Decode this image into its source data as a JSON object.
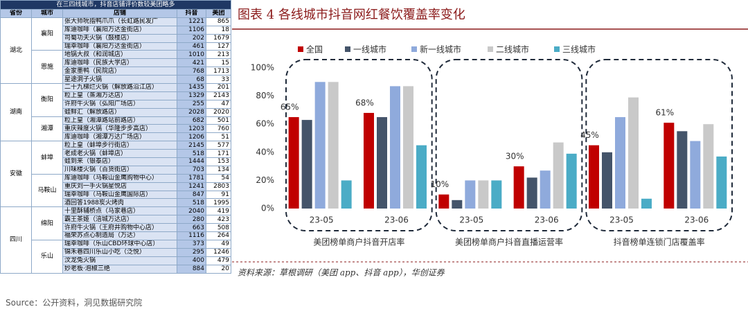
{
  "table": {
    "title": "在三四线城市，抖音店铺评价数较美团略多",
    "headers": [
      "省份",
      "城市",
      "店铺",
      "抖音",
      "美团"
    ],
    "provinces": [
      {
        "name": "湖北",
        "cities": [
          {
            "name": "襄阳",
            "stores": [
              {
                "name": "张大师吮指鸭爪爪（长虹路民发广",
                "douyin": 1221,
                "meituan": 865
              },
              {
                "name": "库迪咖啡（襄阳万达金街店）",
                "douyin": 1106,
                "meituan": 18
              },
              {
                "name": "司蜀功夫火锅（鼓楼店）",
                "douyin": 202,
                "meituan": 1679
              },
              {
                "name": "瑞幸咖啡（襄阳万达金街店）",
                "douyin": 461,
                "meituan": 127
              }
            ]
          },
          {
            "name": "恩施",
            "stores": [
              {
                "name": "地锅大叔（和润城店）",
                "douyin": 1010,
                "meituan": 213
              },
              {
                "name": "库迪咖啡（民族大学店）",
                "douyin": 421,
                "meituan": 15
              },
              {
                "name": "金家墨鸭（民院店）",
                "douyin": 768,
                "meituan": 1713
              },
              {
                "name": "星途洞子火锅",
                "douyin": 68,
                "meituan": 33
              }
            ]
          }
        ]
      },
      {
        "name": "湖南",
        "cities": [
          {
            "name": "衡阳",
            "stores": [
              {
                "name": "二十九梯烂火锅（解放路沿江店）",
                "douyin": 1435,
                "meituan": 201
              },
              {
                "name": "粒上皇（蒸湘万达店）",
                "douyin": 1329,
                "meituan": 2143
              },
              {
                "name": "许府牛火锅（弘阳广场店）",
                "douyin": 255,
                "meituan": 47
              },
              {
                "name": "蛙鲜汇（解放路店）",
                "douyin": 2028,
                "meituan": 2020
              }
            ]
          },
          {
            "name": "湘潭",
            "stores": [
              {
                "name": "粒上皇（湘潭路站前路店）",
                "douyin": 682,
                "meituan": 501
              },
              {
                "name": "重庆辣度火锅（华隆步步高店）",
                "douyin": 1203,
                "meituan": 760
              },
              {
                "name": "库迪咖啡（湘潭万达广场店）",
                "douyin": 1206,
                "meituan": 51
              }
            ]
          }
        ]
      },
      {
        "name": "安徽",
        "cities": [
          {
            "name": "蚌埠",
            "stores": [
              {
                "name": "粒上皇（蚌埠步行街店）",
                "douyin": 2145,
                "meituan": 577
              },
              {
                "name": "老成老火锅（蚌埠店）",
                "douyin": 518,
                "meituan": 171
              },
              {
                "name": "蛙到来（银泰店）",
                "douyin": 1444,
                "meituan": 153
              },
              {
                "name": "川味楼火锅（百货街店）",
                "douyin": 703,
                "meituan": 134
              }
            ]
          },
          {
            "name": "马鞍山",
            "stores": [
              {
                "name": "库迪咖啡（马鞍山金鹰购物中心）",
                "douyin": 1781,
                "meituan": 54
              },
              {
                "name": "重庆刘一手火锅星悦店",
                "douyin": 1241,
                "meituan": 2803
              },
              {
                "name": "瑞幸咖啡（马鞍山金鹰国际店）",
                "douyin": 847,
                "meituan": 91
              },
              {
                "name": "酒回答1988炭火烤肉",
                "douyin": 518,
                "meituan": 1995
              }
            ]
          }
        ]
      },
      {
        "name": "四川",
        "cities": [
          {
            "name": "绵阳",
            "stores": [
              {
                "name": "十里酥辅桥点（马家巷店）",
                "douyin": 2040,
                "meituan": 419
              },
              {
                "name": "霸王茶姬（涪城万达店）",
                "douyin": 280,
                "meituan": 423
              },
              {
                "name": "许府牛火锅（王府井购物中心店）",
                "douyin": 663,
                "meituan": 508
              },
              {
                "name": "福荣苏点心制造局（万达）",
                "douyin": 1116,
                "meituan": 264
              }
            ]
          },
          {
            "name": "乐山",
            "stores": [
              {
                "name": "瑞幸咖啡（乐山CBD环球中心店）",
                "douyin": 373,
                "meituan": 49
              },
              {
                "name": "锦禾巷四川乐山小吃（泛悦）",
                "douyin": 295,
                "meituan": 1246
              },
              {
                "name": "汶龙兔火锅",
                "douyin": 400,
                "meituan": 479
              },
              {
                "name": "妙老板·泡椒三绝",
                "douyin": 884,
                "meituan": 20
              }
            ]
          }
        ]
      }
    ]
  },
  "chart_data": {
    "type": "bar",
    "title": "图表 4   各线城市抖音网红餐饮覆盖率变化",
    "categories": [
      "23-05",
      "23-06",
      "23-05",
      "23-06",
      "23-05",
      "23-06"
    ],
    "groups": [
      "美团榜单商户抖音开店率",
      "美团榜单商户抖音直播运营率",
      "抖音榜单连锁门店覆盖率"
    ],
    "series": [
      {
        "name": "全国",
        "color": "#c00000",
        "values": [
          65,
          68,
          10,
          30,
          45,
          61
        ],
        "value_labels": [
          "65%",
          "68%",
          "10%",
          "30%",
          "45%",
          "61%"
        ]
      },
      {
        "name": "一线城市",
        "color": "#44546a",
        "values": [
          63,
          65,
          6,
          22,
          40,
          55
        ]
      },
      {
        "name": "新一线城市",
        "color": "#8faadc",
        "values": [
          90,
          87,
          20,
          27,
          65,
          48
        ]
      },
      {
        "name": "二线城市",
        "color": "#c9c9c9",
        "values": [
          90,
          87,
          20,
          47,
          79,
          60
        ]
      },
      {
        "name": "三线城市",
        "color": "#4bacc6",
        "values": [
          20,
          45,
          20,
          39,
          7,
          37
        ]
      }
    ],
    "ylim": [
      0,
      100
    ],
    "yticks": [
      {
        "value": 0,
        "label": "0%"
      },
      {
        "value": 20,
        "label": "20%"
      },
      {
        "value": 40,
        "label": "40%"
      },
      {
        "value": 60,
        "label": "60%"
      },
      {
        "value": 80,
        "label": "80%"
      },
      {
        "value": 100,
        "label": "100%"
      }
    ],
    "grid": false,
    "note": "资料来源：草根调研（美团 app、抖音 app），华创证券"
  },
  "source": "Source：公开资料，洞见数据研究院"
}
